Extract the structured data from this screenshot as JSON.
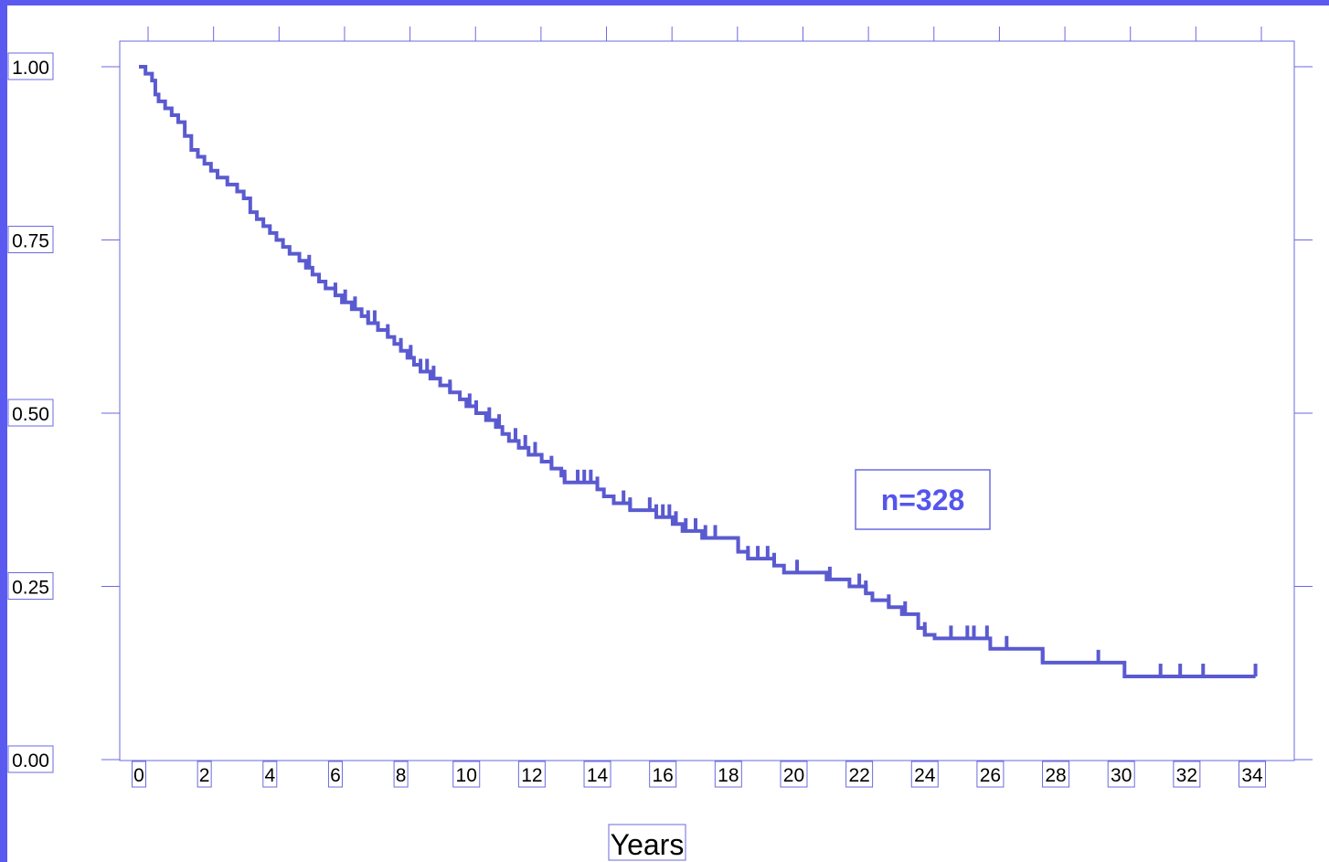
{
  "colors": {
    "frame": "#5a5af0",
    "axis": "#6a6ae0",
    "curve": "#5a5ad0",
    "annotation_text": "#5555ee",
    "tick_label_text": "#000000"
  },
  "chart_data": {
    "type": "line",
    "title": "",
    "xlabel": "Years",
    "ylabel": "",
    "xlim": [
      -0.3,
      35.5
    ],
    "ylim": [
      0,
      1.07
    ],
    "x_ticks": [
      0,
      2,
      4,
      6,
      8,
      10,
      12,
      14,
      16,
      18,
      20,
      22,
      24,
      26,
      28,
      30,
      32,
      34
    ],
    "x_tick_labels": [
      "0",
      "2",
      "4",
      "6",
      "8",
      "10",
      "12",
      "14",
      "16",
      "18",
      "20",
      "22",
      "24",
      "26",
      "28",
      "30",
      "32",
      "34"
    ],
    "y_ticks": [
      0,
      0.25,
      0.5,
      0.75,
      1
    ],
    "y_tick_labels": [
      "0.00",
      "0.25",
      "0.50",
      "0.75",
      "1.00"
    ],
    "grid": false,
    "annotation": "n=328",
    "series": [
      {
        "step": true,
        "points": [
          [
            0,
            1.0
          ],
          [
            0.2,
            0.99
          ],
          [
            0.4,
            0.98
          ],
          [
            0.5,
            0.96
          ],
          [
            0.6,
            0.95
          ],
          [
            0.8,
            0.94
          ],
          [
            1.0,
            0.93
          ],
          [
            1.2,
            0.92
          ],
          [
            1.4,
            0.9
          ],
          [
            1.6,
            0.88
          ],
          [
            1.8,
            0.87
          ],
          [
            2.0,
            0.86
          ],
          [
            2.2,
            0.85
          ],
          [
            2.4,
            0.84
          ],
          [
            2.7,
            0.83
          ],
          [
            3.0,
            0.82
          ],
          [
            3.2,
            0.81
          ],
          [
            3.4,
            0.79
          ],
          [
            3.6,
            0.78
          ],
          [
            3.8,
            0.77
          ],
          [
            4.0,
            0.76
          ],
          [
            4.2,
            0.75
          ],
          [
            4.4,
            0.74
          ],
          [
            4.6,
            0.73
          ],
          [
            4.9,
            0.72
          ],
          [
            5.1,
            0.71
          ],
          [
            5.3,
            0.7
          ],
          [
            5.5,
            0.69
          ],
          [
            5.7,
            0.68
          ],
          [
            6.0,
            0.67
          ],
          [
            6.2,
            0.66
          ],
          [
            6.5,
            0.65
          ],
          [
            6.8,
            0.64
          ],
          [
            7.0,
            0.63
          ],
          [
            7.3,
            0.62
          ],
          [
            7.6,
            0.61
          ],
          [
            7.8,
            0.6
          ],
          [
            8.0,
            0.59
          ],
          [
            8.2,
            0.58
          ],
          [
            8.4,
            0.57
          ],
          [
            8.6,
            0.56
          ],
          [
            8.9,
            0.55
          ],
          [
            9.2,
            0.54
          ],
          [
            9.5,
            0.53
          ],
          [
            9.8,
            0.52
          ],
          [
            10.0,
            0.51
          ],
          [
            10.3,
            0.5
          ],
          [
            10.6,
            0.49
          ],
          [
            10.9,
            0.48
          ],
          [
            11.1,
            0.47
          ],
          [
            11.3,
            0.46
          ],
          [
            11.6,
            0.45
          ],
          [
            11.9,
            0.44
          ],
          [
            12.3,
            0.43
          ],
          [
            12.6,
            0.42
          ],
          [
            12.9,
            0.41
          ],
          [
            13.0,
            0.4
          ],
          [
            14.0,
            0.39
          ],
          [
            14.2,
            0.38
          ],
          [
            14.5,
            0.37
          ],
          [
            15.0,
            0.36
          ],
          [
            15.8,
            0.35
          ],
          [
            16.3,
            0.34
          ],
          [
            16.6,
            0.33
          ],
          [
            17.2,
            0.32
          ],
          [
            18.3,
            0.3
          ],
          [
            18.6,
            0.29
          ],
          [
            19.4,
            0.28
          ],
          [
            19.7,
            0.27
          ],
          [
            21.0,
            0.26
          ],
          [
            21.7,
            0.25
          ],
          [
            22.2,
            0.24
          ],
          [
            22.4,
            0.23
          ],
          [
            22.9,
            0.22
          ],
          [
            23.3,
            0.21
          ],
          [
            23.8,
            0.19
          ],
          [
            24.0,
            0.18
          ],
          [
            24.3,
            0.175
          ],
          [
            26.0,
            0.16
          ],
          [
            27.6,
            0.14
          ],
          [
            30.1,
            0.12
          ],
          [
            34.1,
            0.12
          ]
        ],
        "censored_x": [
          5.2,
          6.0,
          6.3,
          6.6,
          7.0,
          7.2,
          7.6,
          8.0,
          8.3,
          8.6,
          8.8,
          9.0,
          9.5,
          10.1,
          10.3,
          10.7,
          11.0,
          11.5,
          11.8,
          12.1,
          12.6,
          13.0,
          13.4,
          13.6,
          13.8,
          14.0,
          14.8,
          15.0,
          15.6,
          15.8,
          16.0,
          16.2,
          16.4,
          16.7,
          17.0,
          17.3,
          17.6,
          18.3,
          18.6,
          18.9,
          19.2,
          19.4,
          20.1,
          21.1,
          22.0,
          22.2,
          22.9,
          23.4,
          24.0,
          24.8,
          25.3,
          25.5,
          25.9,
          26.5,
          27.6,
          29.3,
          31.2,
          31.8,
          32.5,
          34.1
        ]
      }
    ]
  }
}
